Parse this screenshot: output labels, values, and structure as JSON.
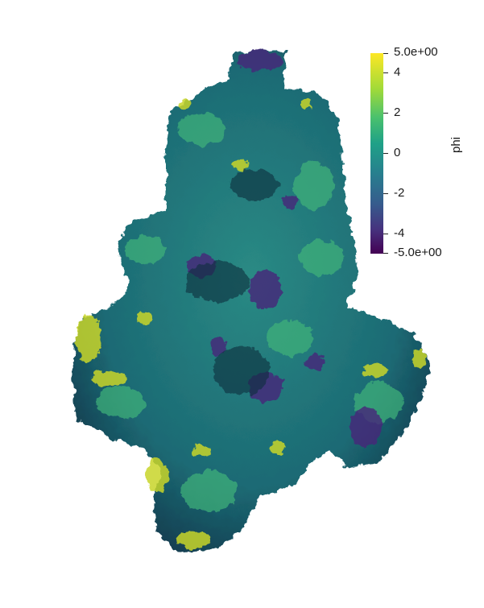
{
  "colorbar": {
    "title": "phi",
    "max_label": "5.0e+00",
    "min_label": "-5.0e+00",
    "range": [
      -5.0,
      5.0
    ],
    "ticks": [
      "4",
      "2",
      "0",
      "-2",
      "-4"
    ],
    "colormap": "viridis"
  },
  "surface": {
    "description_colors": {
      "low": "#440154",
      "mid": "#21908c",
      "high": "#fde725"
    }
  }
}
